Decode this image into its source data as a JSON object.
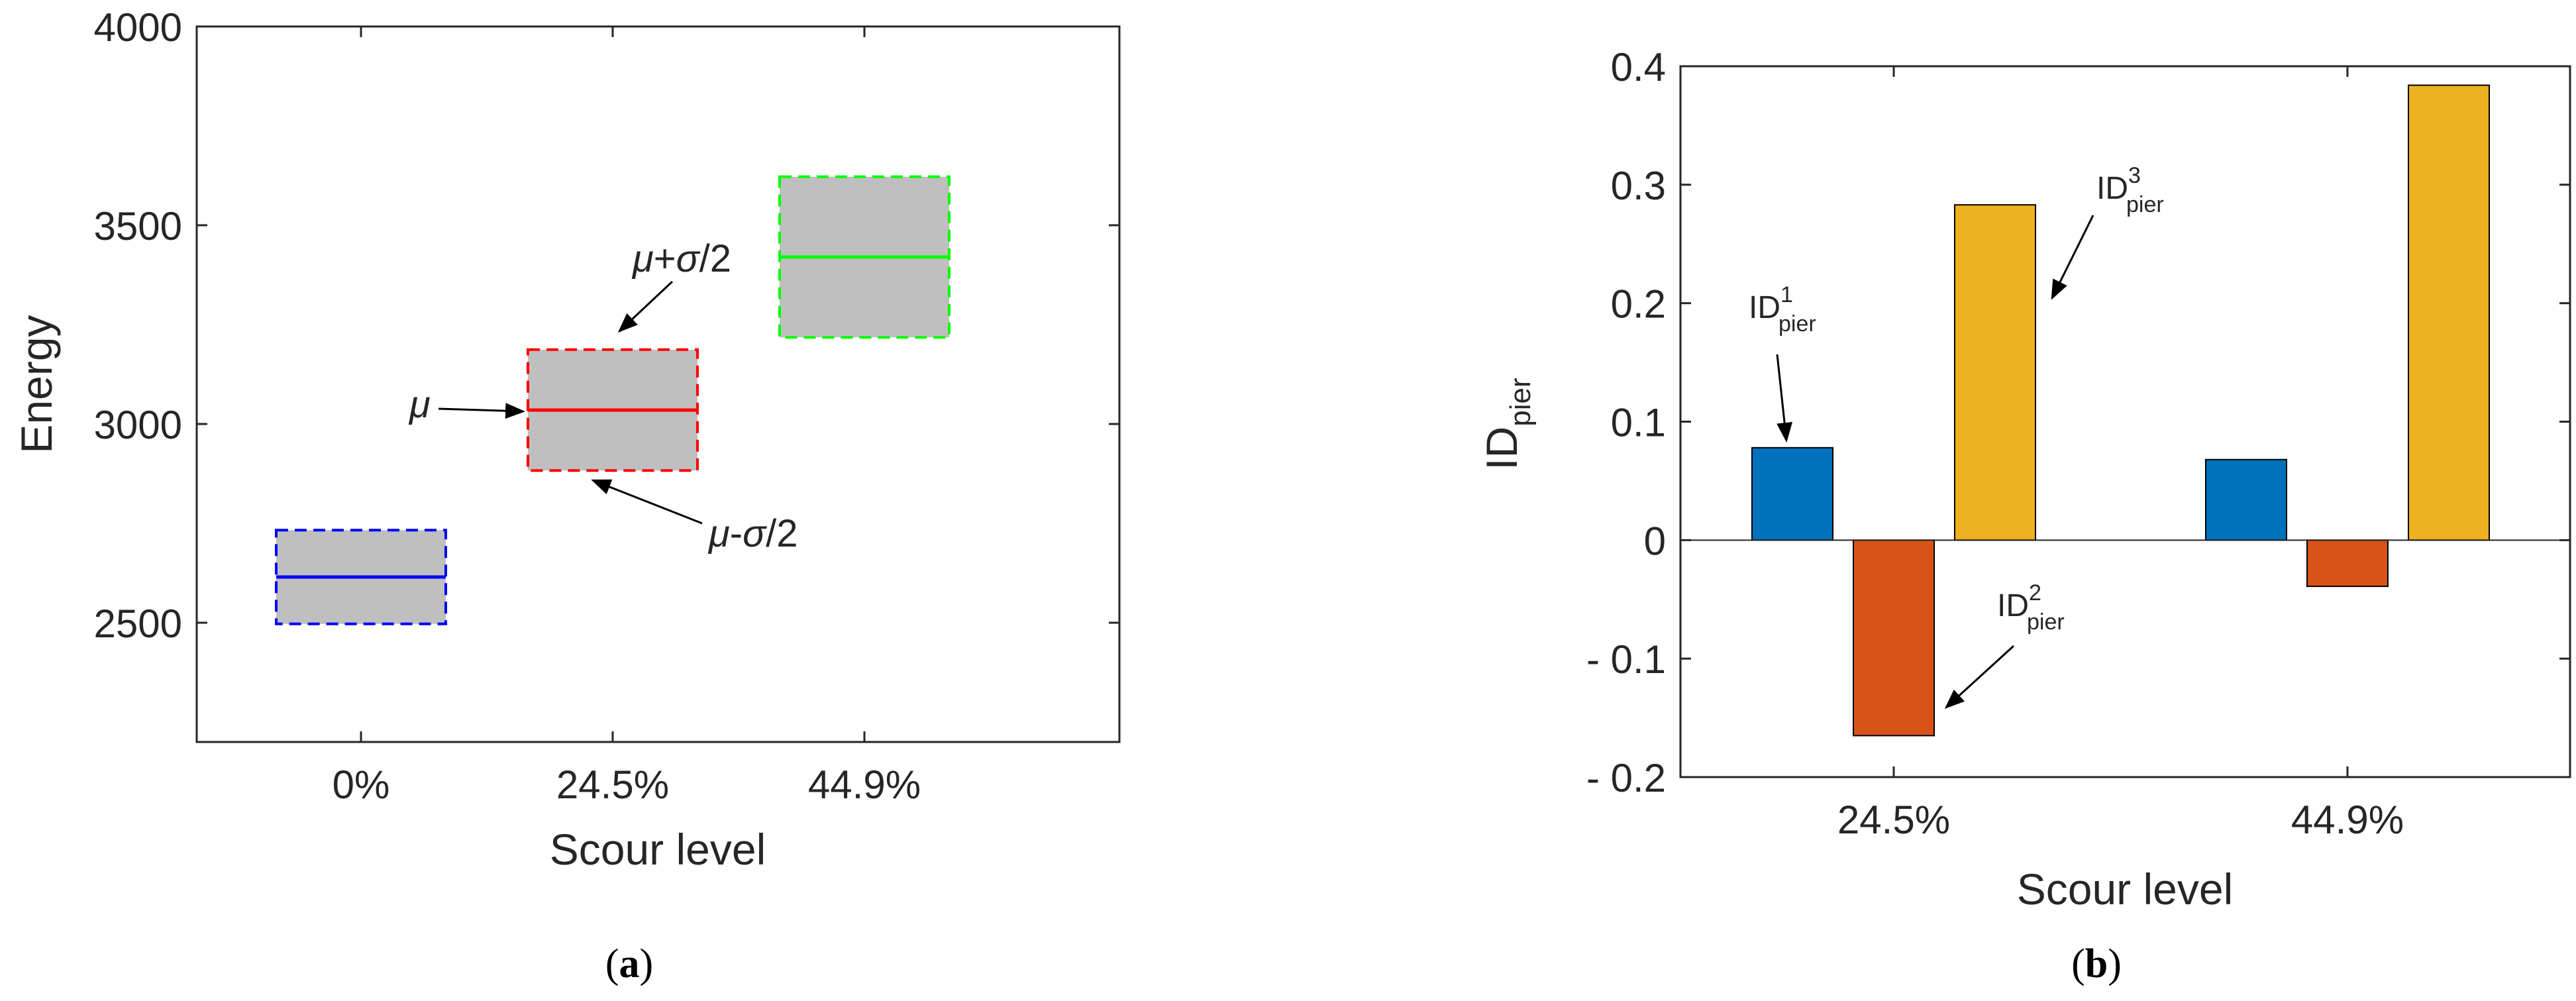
{
  "chart_data": [
    {
      "panel_label": "a",
      "type": "box",
      "xlabel": "Scour level",
      "ylabel": "Energy",
      "categories": [
        "0%",
        "24.5%",
        "44.9%"
      ],
      "ylim": [
        2200,
        4000
      ],
      "yticks": [
        2500,
        3000,
        3500,
        4000
      ],
      "boxes": [
        {
          "category": "0%",
          "mean": 2615,
          "lower": 2497,
          "upper": 2733,
          "color": "#0000ff"
        },
        {
          "category": "24.5%",
          "mean": 3035,
          "lower": 2883,
          "upper": 3187,
          "color": "#ff0000"
        },
        {
          "category": "44.9%",
          "mean": 3420,
          "lower": 3218,
          "upper": 3622,
          "color": "#00ff00"
        }
      ],
      "fill_color": "#bfbfbf",
      "annotations": {
        "mean_symbol": "μ",
        "upper": {
          "mu": "μ",
          "op": "+",
          "sigma": "σ",
          "div": "/2"
        },
        "lower": {
          "mu": "μ",
          "op": "-",
          "sigma": "σ",
          "div": "/2"
        }
      }
    },
    {
      "panel_label": "b",
      "type": "bar",
      "xlabel": "Scour level",
      "ylabel": {
        "main": "ID",
        "sub": "pier"
      },
      "categories": [
        "24.5%",
        "44.9%"
      ],
      "ylim": [
        -0.2,
        0.4
      ],
      "yticks": [
        -0.2,
        -0.1,
        0,
        0.1,
        0.2,
        0.3,
        0.4
      ],
      "ytick_labels": [
        "- 0.2",
        "- 0.1",
        "0",
        "0.1",
        "0.2",
        "0.3",
        "0.4"
      ],
      "series": [
        {
          "label": {
            "main": "ID",
            "sup": "1",
            "sub": "pier"
          },
          "values": [
            0.078,
            0.068
          ],
          "color": "#0072bd"
        },
        {
          "label": {
            "main": "ID",
            "sup": "2",
            "sub": "pier"
          },
          "values": [
            -0.165,
            -0.039
          ],
          "color": "#d95319"
        },
        {
          "label": {
            "main": "ID",
            "sup": "3",
            "sub": "pier"
          },
          "values": [
            0.283,
            0.384
          ],
          "color": "#edb120"
        }
      ]
    }
  ]
}
